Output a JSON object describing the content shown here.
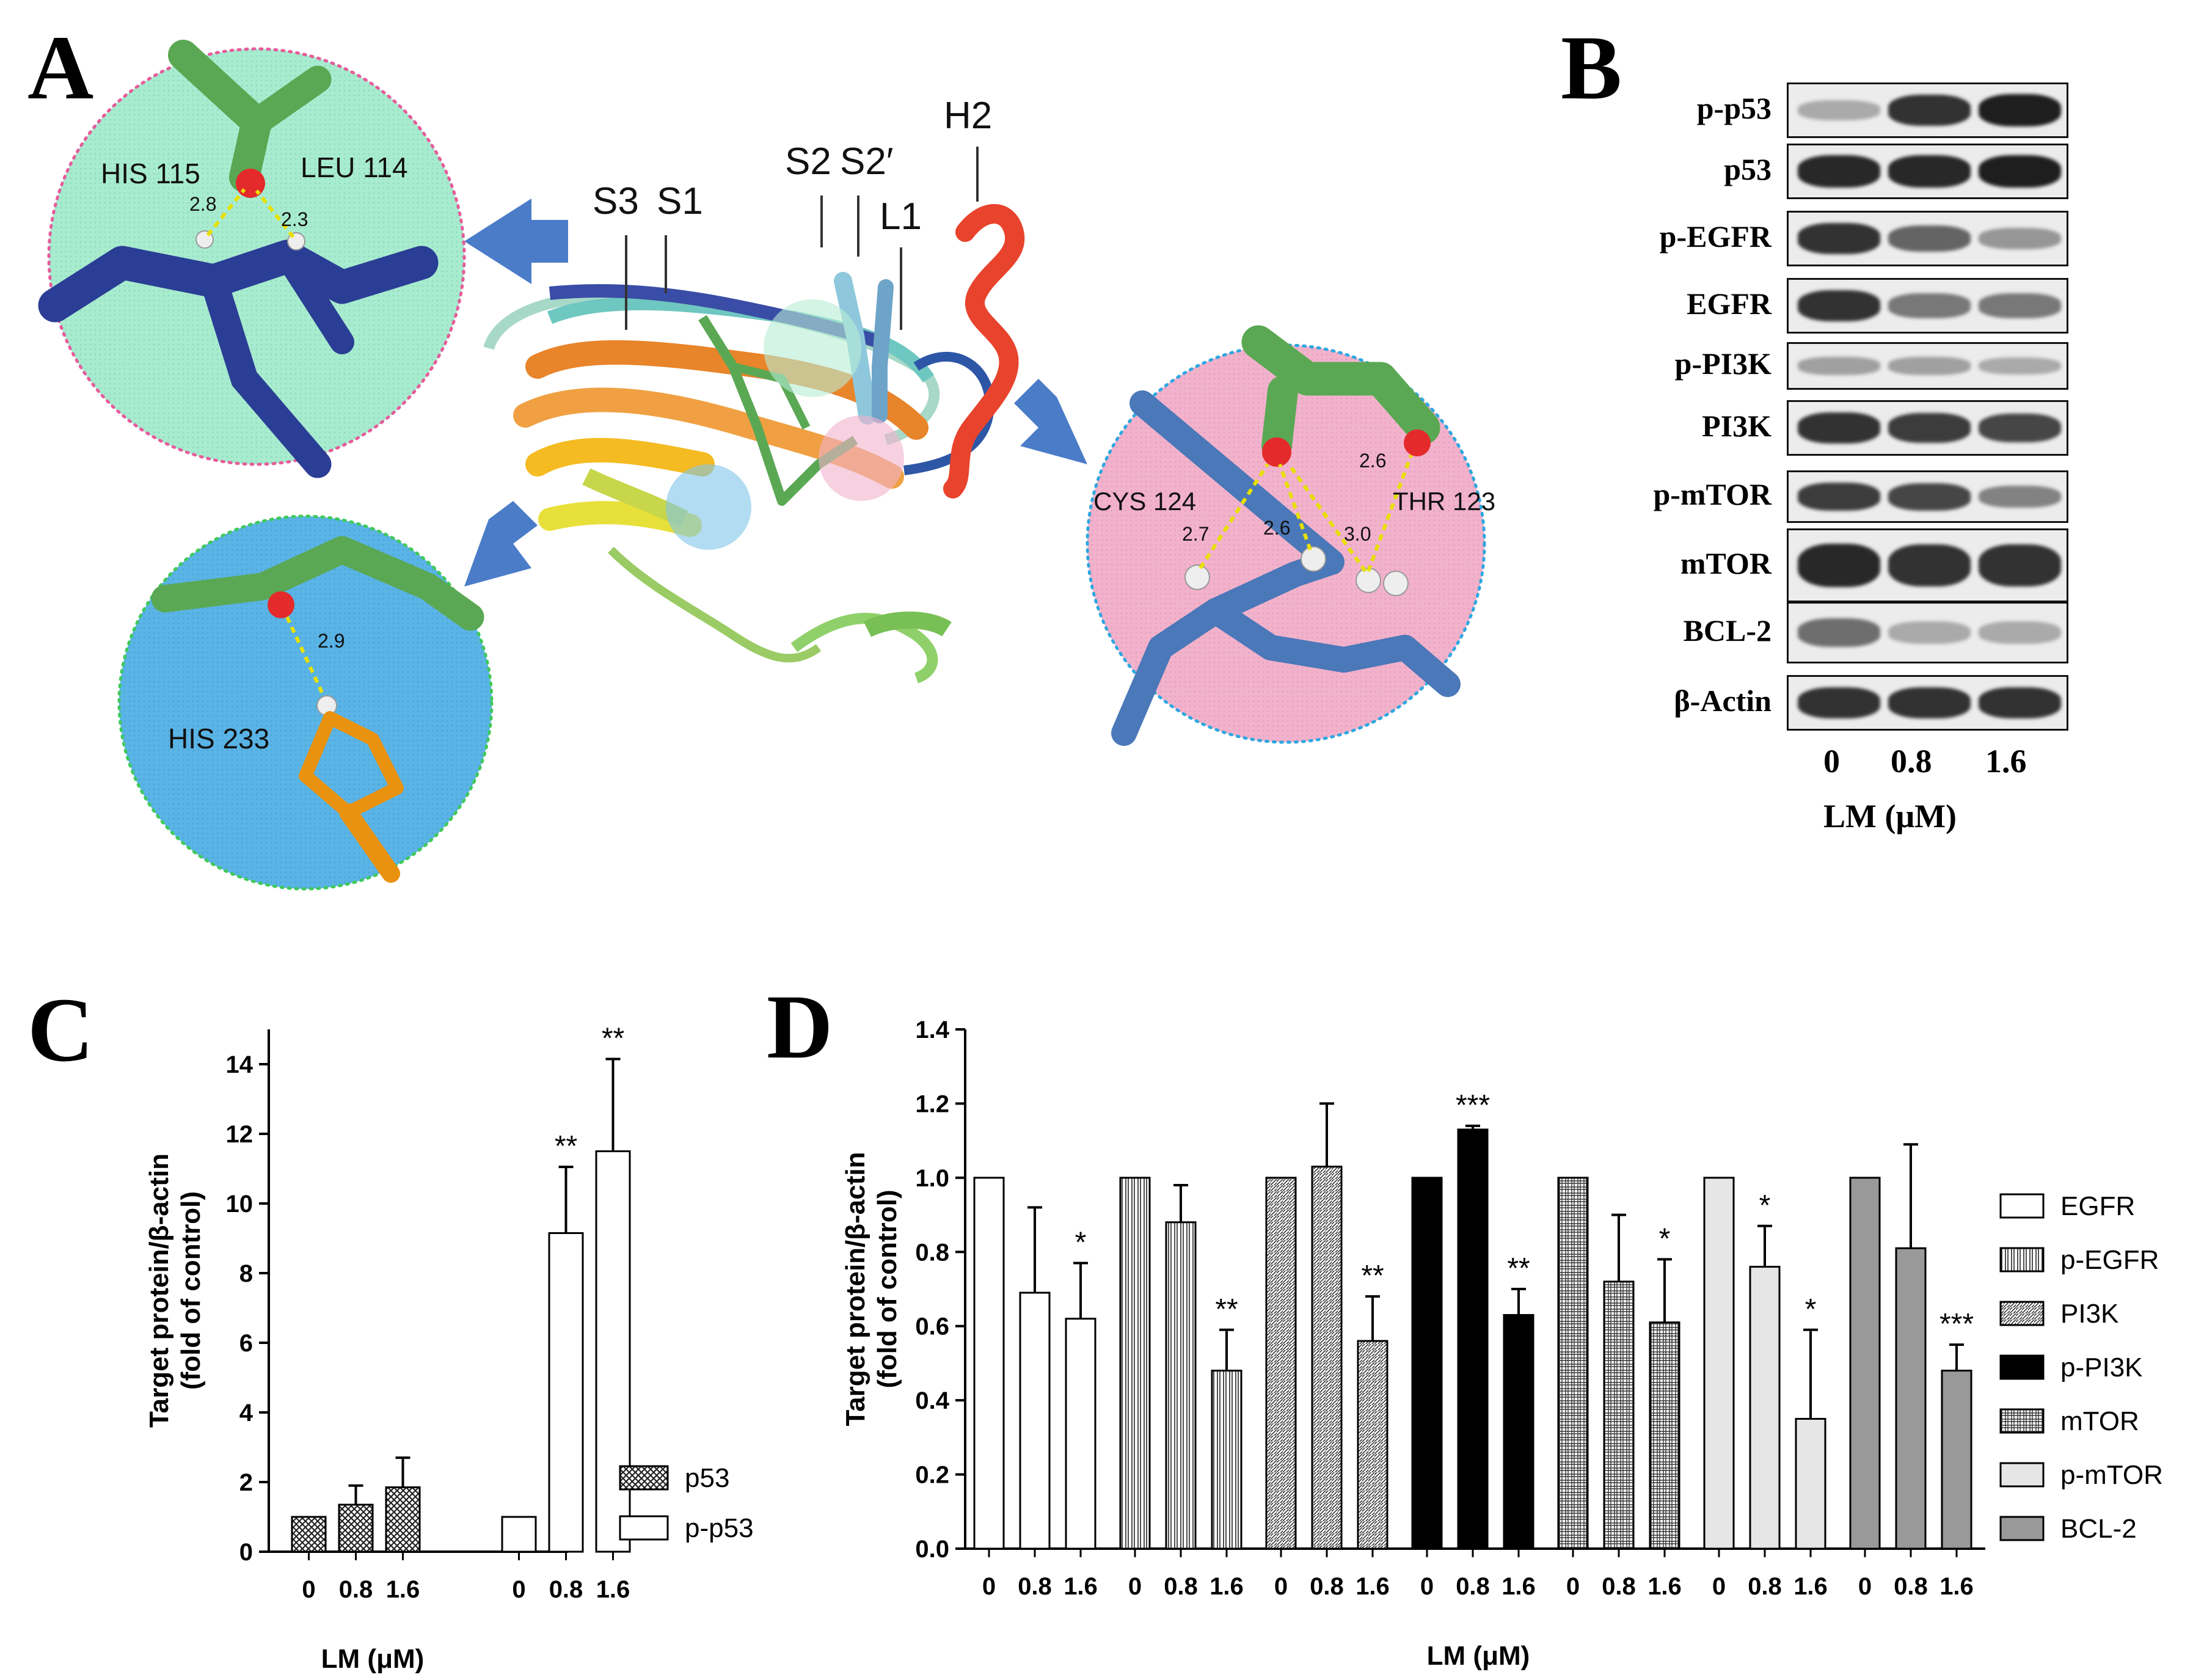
{
  "panels": {
    "a": "A",
    "b": "B",
    "c": "C",
    "d": "D"
  },
  "panel_a": {
    "structure_labels": [
      "S3",
      "S1",
      "S2",
      "S2′",
      "L1",
      "H2"
    ],
    "inset_top_left": {
      "residues": [
        "HIS 115",
        "LEU 114"
      ],
      "distances": [
        "2.8",
        "2.3"
      ]
    },
    "inset_bottom_left": {
      "residues": [
        "HIS 233"
      ],
      "distances": [
        "2.9"
      ]
    },
    "inset_right": {
      "residues": [
        "CYS 124",
        "THR 123"
      ],
      "distances": [
        "2.6",
        "2.7",
        "2.6",
        "3.0"
      ]
    }
  },
  "panel_b": {
    "rows": [
      "p-p53",
      "p53",
      "p-EGFR",
      "EGFR",
      "p-PI3K",
      "PI3K",
      "p-mTOR",
      "mTOR",
      "BCL-2",
      "β-Actin"
    ],
    "band_intensity": [
      [
        0.25,
        0.85,
        0.95
      ],
      [
        0.9,
        0.9,
        0.95
      ],
      [
        0.85,
        0.6,
        0.35
      ],
      [
        0.85,
        0.5,
        0.5
      ],
      [
        0.3,
        0.3,
        0.25
      ],
      [
        0.85,
        0.8,
        0.75
      ],
      [
        0.8,
        0.75,
        0.45
      ],
      [
        0.9,
        0.85,
        0.85
      ],
      [
        0.55,
        0.25,
        0.25
      ],
      [
        0.85,
        0.85,
        0.85
      ]
    ],
    "doses": [
      "0",
      "0.8",
      "1.6"
    ],
    "xlabel": "LM (μM)"
  },
  "chart_data": [
    {
      "type": "bar",
      "panel": "C",
      "ylabel": "Target protein/β-actin (fold of control)",
      "ylabel_line1": "Target protein/β-actin",
      "ylabel_line2": "(fold of control)",
      "xlabel": "LM (μM)",
      "categories": [
        "0",
        "0.8",
        "1.6"
      ],
      "ylim": [
        0,
        15
      ],
      "yticks": [
        "0",
        "2",
        "4",
        "6",
        "8",
        "10",
        "12",
        "14"
      ],
      "series": [
        {
          "name": "p53",
          "values": [
            1.0,
            1.35,
            1.85
          ],
          "errors": [
            0,
            0.55,
            0.85
          ],
          "sig": [
            "",
            "",
            ""
          ]
        },
        {
          "name": "p-p53",
          "values": [
            1.0,
            9.15,
            11.5
          ],
          "errors": [
            0,
            1.9,
            2.65
          ],
          "sig": [
            "",
            "**",
            "**"
          ]
        }
      ]
    },
    {
      "type": "bar",
      "panel": "D",
      "ylabel": "Target protein/β-actin (fold of control)",
      "ylabel_line1": "Target protein/β-actin",
      "ylabel_line2": "(fold of control)",
      "xlabel": "LM (μM)",
      "categories": [
        "0",
        "0.8",
        "1.6"
      ],
      "ylim": [
        0,
        1.4
      ],
      "yticks": [
        "0.0",
        "0.2",
        "0.4",
        "0.6",
        "0.8",
        "1.0",
        "1.2",
        "1.4"
      ],
      "series": [
        {
          "name": "EGFR",
          "values": [
            1.0,
            0.69,
            0.62
          ],
          "errors": [
            0,
            0.23,
            0.15
          ],
          "sig": [
            "",
            "",
            "*"
          ]
        },
        {
          "name": "p-EGFR",
          "values": [
            1.0,
            0.88,
            0.48
          ],
          "errors": [
            0,
            0.1,
            0.11
          ],
          "sig": [
            "",
            "",
            "**"
          ]
        },
        {
          "name": "PI3K",
          "values": [
            1.0,
            1.03,
            0.56
          ],
          "errors": [
            0,
            0.17,
            0.12
          ],
          "sig": [
            "",
            "",
            "**"
          ]
        },
        {
          "name": "p-PI3K",
          "values": [
            1.0,
            1.13,
            0.63
          ],
          "errors": [
            0,
            0.01,
            0.07
          ],
          "sig": [
            "",
            "***",
            "**"
          ]
        },
        {
          "name": "mTOR",
          "values": [
            1.0,
            0.72,
            0.61
          ],
          "errors": [
            0,
            0.18,
            0.17
          ],
          "sig": [
            "",
            "",
            "*"
          ]
        },
        {
          "name": "p-mTOR",
          "values": [
            1.0,
            0.76,
            0.35
          ],
          "errors": [
            0,
            0.11,
            0.24
          ],
          "sig": [
            "",
            "*",
            "*"
          ]
        },
        {
          "name": "BCL-2",
          "values": [
            1.0,
            0.81,
            0.48
          ],
          "errors": [
            0,
            0.28,
            0.07
          ],
          "sig": [
            "",
            "",
            "***"
          ]
        }
      ]
    }
  ]
}
